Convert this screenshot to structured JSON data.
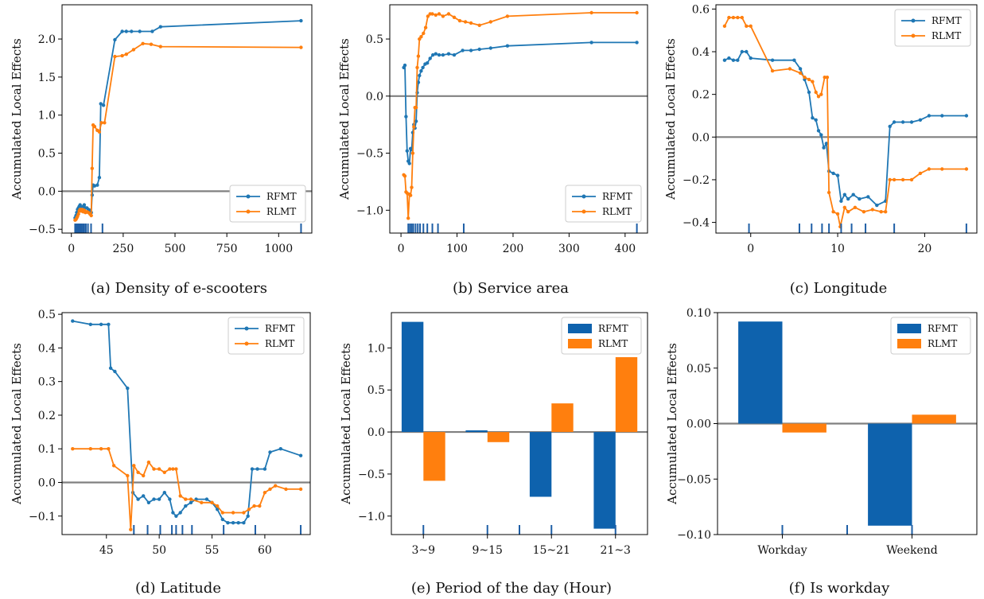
{
  "colors": {
    "rfmt": "#1f77b4",
    "rlmt": "#ff7f0e",
    "zero_line": "#808080",
    "bar_rfmt": "#0e62ad"
  },
  "chart_data": [
    {
      "id": "a",
      "type": "line",
      "caption": "(a) Density of e-scooters",
      "ylabel": "Accumulated Local Effects",
      "xlim": [
        -45,
        1160
      ],
      "ylim": [
        -0.55,
        2.45
      ],
      "xticks": [
        0,
        250,
        500,
        750,
        1000
      ],
      "xtick_labels": [
        "0",
        "250",
        "500",
        "750",
        "1000"
      ],
      "yticks": [
        -0.5,
        0.0,
        0.5,
        1.0,
        1.5,
        2.0
      ],
      "ytick_labels": [
        "−0.5",
        "0.0",
        "0.5",
        "1.0",
        "1.5",
        "2.0"
      ],
      "zero_line": true,
      "legend_position": "lower-right",
      "rug": [
        18,
        24,
        30,
        36,
        42,
        48,
        55,
        62,
        70,
        80,
        95,
        150,
        1108
      ],
      "series": [
        {
          "name": "RFMT",
          "color": "#1f77b4",
          "x": [
            18,
            22,
            26,
            30,
            34,
            38,
            42,
            47,
            52,
            57,
            62,
            68,
            75,
            82,
            90,
            96,
            100,
            105,
            112,
            125,
            135,
            142,
            155,
            210,
            245,
            265,
            290,
            330,
            390,
            430,
            1108
          ],
          "y": [
            -0.35,
            -0.32,
            -0.28,
            -0.24,
            -0.22,
            -0.2,
            -0.18,
            -0.21,
            -0.22,
            -0.2,
            -0.18,
            -0.22,
            -0.22,
            -0.24,
            -0.25,
            -0.28,
            -0.05,
            0.08,
            0.07,
            0.08,
            0.18,
            1.15,
            1.13,
            1.99,
            2.1,
            2.1,
            2.1,
            2.1,
            2.1,
            2.16,
            2.24
          ]
        },
        {
          "name": "RLMT",
          "color": "#ff7f0e",
          "x": [
            18,
            22,
            26,
            30,
            34,
            38,
            42,
            47,
            52,
            57,
            62,
            68,
            75,
            82,
            90,
            96,
            100,
            105,
            112,
            125,
            135,
            145,
            160,
            210,
            245,
            265,
            300,
            345,
            385,
            430,
            1108
          ],
          "y": [
            -0.38,
            -0.37,
            -0.35,
            -0.33,
            -0.3,
            -0.26,
            -0.24,
            -0.26,
            -0.24,
            -0.27,
            -0.25,
            -0.28,
            -0.27,
            -0.28,
            -0.3,
            -0.32,
            0.3,
            0.87,
            0.85,
            0.8,
            0.78,
            0.9,
            0.9,
            1.77,
            1.78,
            1.8,
            1.86,
            1.94,
            1.93,
            1.9,
            1.89
          ]
        }
      ]
    },
    {
      "id": "b",
      "type": "line",
      "caption": "(b) Service area",
      "ylabel": "Accumulated Local Effects",
      "xlim": [
        -20,
        440
      ],
      "ylim": [
        -1.2,
        0.8
      ],
      "xticks": [
        0,
        100,
        200,
        300,
        400
      ],
      "xtick_labels": [
        "0",
        "100",
        "200",
        "300",
        "400"
      ],
      "yticks": [
        -1.0,
        -0.5,
        0.0,
        0.5
      ],
      "ytick_labels": [
        "−1.0",
        "−0.5",
        "0.0",
        "0.5"
      ],
      "zero_line": true,
      "legend_position": "lower-right",
      "rug": [
        13,
        16,
        19,
        22,
        26,
        30,
        34,
        40,
        47,
        56,
        66,
        112,
        421
      ],
      "series": [
        {
          "name": "RFMT",
          "color": "#1f77b4",
          "x": [
            5,
            7,
            9,
            11,
            13,
            15,
            17,
            19,
            21,
            23,
            25,
            27,
            29,
            31,
            33,
            36,
            39,
            43,
            47,
            52,
            57,
            62,
            68,
            75,
            85,
            95,
            110,
            125,
            140,
            160,
            190,
            340,
            421
          ],
          "y": [
            0.25,
            0.27,
            -0.18,
            -0.48,
            -0.57,
            -0.59,
            -0.46,
            -0.47,
            -0.32,
            -0.25,
            -0.28,
            -0.22,
            0.03,
            0.12,
            0.18,
            0.22,
            0.25,
            0.28,
            0.29,
            0.33,
            0.36,
            0.37,
            0.36,
            0.36,
            0.37,
            0.36,
            0.4,
            0.4,
            0.41,
            0.42,
            0.44,
            0.47,
            0.47
          ]
        },
        {
          "name": "RLMT",
          "color": "#ff7f0e",
          "x": [
            5,
            7,
            9,
            11,
            13,
            15,
            17,
            19,
            21,
            23,
            25,
            27,
            29,
            31,
            33,
            36,
            40,
            44,
            48,
            52,
            56,
            62,
            68,
            75,
            85,
            95,
            105,
            115,
            125,
            140,
            160,
            190,
            340,
            421
          ],
          "y": [
            -0.69,
            -0.7,
            -0.84,
            -0.85,
            -1.07,
            -0.86,
            -0.87,
            -0.8,
            -0.5,
            -0.27,
            -0.1,
            -0.1,
            0.25,
            0.35,
            0.5,
            0.52,
            0.55,
            0.6,
            0.7,
            0.72,
            0.72,
            0.71,
            0.72,
            0.7,
            0.72,
            0.69,
            0.66,
            0.65,
            0.64,
            0.62,
            0.65,
            0.7,
            0.73,
            0.73
          ]
        }
      ]
    },
    {
      "id": "c",
      "type": "line",
      "caption": "(c) Longitude",
      "ylabel": "Accumulated Local Effects",
      "xlim": [
        -4,
        26
      ],
      "ylim": [
        -0.45,
        0.62
      ],
      "xticks": [
        0,
        10,
        20
      ],
      "xtick_labels": [
        "0",
        "10",
        "20"
      ],
      "yticks": [
        -0.4,
        -0.2,
        0.0,
        0.2,
        0.4,
        0.6
      ],
      "ytick_labels": [
        "−0.4",
        "−0.2",
        "0.0",
        "0.2",
        "0.4",
        "0.6"
      ],
      "zero_line": true,
      "legend_position": "upper-right",
      "rug": [
        -0.2,
        5.6,
        7.0,
        8.2,
        9.0,
        10.4,
        11.6,
        13.2,
        16.5,
        24.8
      ],
      "series": [
        {
          "name": "RFMT",
          "color": "#1f77b4",
          "x": [
            -3,
            -2.5,
            -2,
            -1.5,
            -1,
            -0.5,
            0,
            2.5,
            5,
            5.7,
            6.2,
            6.7,
            7.1,
            7.5,
            7.8,
            8.1,
            8.4,
            8.7,
            9.0,
            9.5,
            10,
            10.4,
            10.8,
            11.2,
            11.8,
            12.5,
            13.5,
            14.5,
            15.5,
            16,
            16.5,
            17.5,
            18.5,
            19.5,
            20.5,
            22,
            24.8
          ],
          "y": [
            0.36,
            0.37,
            0.36,
            0.36,
            0.4,
            0.4,
            0.37,
            0.36,
            0.36,
            0.32,
            0.27,
            0.21,
            0.09,
            0.08,
            0.03,
            0.01,
            -0.05,
            -0.03,
            -0.16,
            -0.17,
            -0.18,
            -0.3,
            -0.27,
            -0.29,
            -0.27,
            -0.29,
            -0.28,
            -0.32,
            -0.3,
            0.05,
            0.07,
            0.07,
            0.07,
            0.08,
            0.1,
            0.1,
            0.1
          ]
        },
        {
          "name": "RLMT",
          "color": "#ff7f0e",
          "x": [
            -3,
            -2.5,
            -2,
            -1.5,
            -1,
            -0.5,
            0,
            2.5,
            4.5,
            5.7,
            6.2,
            6.7,
            7.1,
            7.5,
            7.8,
            8.1,
            8.5,
            8.8,
            9.0,
            9.5,
            10,
            10.3,
            10.8,
            11.2,
            12,
            13,
            14,
            15,
            15.5,
            16,
            16.5,
            17.5,
            18.5,
            19.5,
            20.5,
            22,
            24.8
          ],
          "y": [
            0.52,
            0.56,
            0.56,
            0.56,
            0.56,
            0.52,
            0.52,
            0.31,
            0.32,
            0.3,
            0.28,
            0.27,
            0.26,
            0.21,
            0.19,
            0.2,
            0.28,
            0.28,
            -0.26,
            -0.35,
            -0.36,
            -0.42,
            -0.33,
            -0.35,
            -0.33,
            -0.35,
            -0.34,
            -0.35,
            -0.35,
            -0.2,
            -0.2,
            -0.2,
            -0.2,
            -0.17,
            -0.15,
            -0.15,
            -0.15
          ]
        }
      ]
    },
    {
      "id": "d",
      "type": "line",
      "caption": "(d) Latitude",
      "ylabel": "Accumulated Local Effects",
      "xlim": [
        40.8,
        64.3
      ],
      "ylim": [
        -0.155,
        0.505
      ],
      "xticks": [
        45,
        50,
        55,
        60
      ],
      "xtick_labels": [
        "45",
        "50",
        "55",
        "60"
      ],
      "yticks": [
        -0.1,
        0.0,
        0.1,
        0.2,
        0.3,
        0.4,
        0.5
      ],
      "ytick_labels": [
        "−0.1",
        "0.0",
        "0.1",
        "0.2",
        "0.3",
        "0.4",
        "0.5"
      ],
      "zero_line": true,
      "legend_position": "upper-right",
      "rug": [
        47.6,
        48.9,
        50.1,
        51.2,
        51.6,
        52.2,
        53.1,
        56.1,
        59.1,
        63.4
      ],
      "series": [
        {
          "name": "RFMT",
          "color": "#1f77b4",
          "x": [
            41.8,
            43.5,
            44.5,
            45.2,
            45.4,
            45.8,
            47.0,
            47.5,
            48.0,
            48.5,
            49.0,
            49.5,
            50.0,
            50.5,
            51.0,
            51.3,
            51.6,
            52.0,
            52.5,
            53.0,
            53.5,
            54.5,
            55.0,
            55.5,
            56.0,
            56.5,
            57.0,
            57.5,
            58.0,
            58.4,
            58.8,
            59.3,
            60.0,
            60.5,
            61.5,
            63.4
          ],
          "y": [
            0.48,
            0.47,
            0.47,
            0.47,
            0.34,
            0.33,
            0.28,
            -0.03,
            -0.05,
            -0.04,
            -0.06,
            -0.05,
            -0.05,
            -0.03,
            -0.05,
            -0.09,
            -0.1,
            -0.09,
            -0.07,
            -0.06,
            -0.05,
            -0.05,
            -0.06,
            -0.08,
            -0.11,
            -0.12,
            -0.12,
            -0.12,
            -0.12,
            -0.1,
            0.04,
            0.04,
            0.04,
            0.09,
            0.1,
            0.08
          ]
        },
        {
          "name": "RLMT",
          "color": "#ff7f0e",
          "x": [
            41.8,
            43.5,
            44.5,
            45.2,
            45.7,
            47.0,
            47.3,
            47.6,
            48.0,
            48.5,
            49.0,
            49.5,
            50.0,
            50.5,
            51.0,
            51.3,
            51.6,
            52.0,
            52.5,
            53.0,
            54.0,
            55.0,
            55.5,
            56.0,
            57.0,
            58.0,
            58.5,
            59.0,
            59.5,
            60.0,
            60.5,
            61.0,
            62.0,
            63.4
          ],
          "y": [
            0.1,
            0.1,
            0.1,
            0.1,
            0.05,
            0.02,
            -0.14,
            0.05,
            0.03,
            0.02,
            0.06,
            0.04,
            0.04,
            0.03,
            0.04,
            0.04,
            0.04,
            -0.04,
            -0.05,
            -0.05,
            -0.06,
            -0.06,
            -0.07,
            -0.09,
            -0.09,
            -0.09,
            -0.08,
            -0.07,
            -0.07,
            -0.03,
            -0.02,
            -0.01,
            -0.02,
            -0.02
          ]
        }
      ]
    },
    {
      "id": "e",
      "type": "bar",
      "caption": "(e) Period of the day (Hour)",
      "ylabel": "Accumulated Local Effects",
      "categories": [
        "3~9",
        "9~15",
        "15~21",
        "21~3"
      ],
      "ylim": [
        -1.22,
        1.42
      ],
      "yticks": [
        -1.0,
        -0.5,
        0.0,
        0.5,
        1.0
      ],
      "ytick_labels": [
        "−1.0",
        "−0.5",
        "0.0",
        "0.5",
        "1.0"
      ],
      "zero_line": true,
      "legend_position": "upper-right",
      "rug": [
        0,
        1,
        1.5,
        2,
        3
      ],
      "series": [
        {
          "name": "RFMT",
          "color": "#0e62ad",
          "values": [
            1.31,
            0.02,
            -0.77,
            -1.15
          ]
        },
        {
          "name": "RLMT",
          "color": "#ff7f0e",
          "values": [
            -0.58,
            -0.12,
            0.34,
            0.89
          ]
        }
      ]
    },
    {
      "id": "f",
      "type": "bar",
      "caption": "(f) Is workday",
      "ylabel": "Accumulated Local Effects",
      "categories": [
        "Workday",
        "Weekend"
      ],
      "ylim": [
        -0.1,
        0.1
      ],
      "yticks": [
        -0.1,
        -0.05,
        0.0,
        0.05,
        0.1
      ],
      "ytick_labels": [
        "−0.10",
        "−0.05",
        "0.00",
        "0.05",
        "0.10"
      ],
      "zero_line": true,
      "legend_position": "upper-right",
      "rug": [
        0,
        0.5,
        1
      ],
      "series": [
        {
          "name": "RFMT",
          "color": "#0e62ad",
          "values": [
            0.092,
            -0.092
          ]
        },
        {
          "name": "RLMT",
          "color": "#ff7f0e",
          "values": [
            -0.008,
            0.008
          ]
        }
      ]
    }
  ]
}
